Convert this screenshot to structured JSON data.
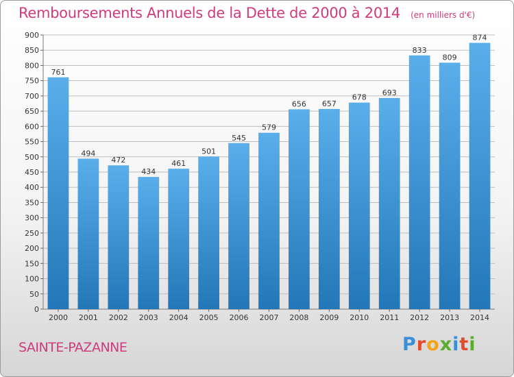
{
  "header": {
    "title": "Remboursements Annuels de la Dette de 2000 à 2014",
    "subtitle": "(en milliers d'€)"
  },
  "footer": {
    "commune": "SAINTE-PAZANNE",
    "brand": "Proxiti",
    "brand_letters": [
      {
        "ch": "P",
        "color": "#3b8fd6"
      },
      {
        "ch": "r",
        "color": "#e34c2a"
      },
      {
        "ch": "o",
        "color": "#f2a51a"
      },
      {
        "ch": "x",
        "color": "#5aae2e"
      },
      {
        "ch": "i",
        "color": "#3b8fd6"
      },
      {
        "ch": "t",
        "color": "#e34c2a"
      },
      {
        "ch": "i",
        "color": "#5aae2e"
      }
    ]
  },
  "colors": {
    "title": "#cf3b7c",
    "bar_light": "#5aaeea",
    "bar_dark": "#2277b8",
    "grid": "#bdbdbd"
  },
  "chart_data": {
    "type": "bar",
    "categories": [
      "2000",
      "2001",
      "2002",
      "2003",
      "2004",
      "2005",
      "2006",
      "2007",
      "2008",
      "2009",
      "2010",
      "2011",
      "2012",
      "2013",
      "2014"
    ],
    "values": [
      761,
      494,
      472,
      434,
      461,
      501,
      545,
      579,
      656,
      657,
      678,
      693,
      833,
      809,
      874
    ],
    "ylim": [
      0,
      900
    ],
    "yticks": [
      0,
      50,
      100,
      150,
      200,
      250,
      300,
      350,
      400,
      450,
      500,
      550,
      600,
      650,
      700,
      750,
      800,
      850,
      900
    ],
    "grid": true,
    "data_labels": true
  }
}
